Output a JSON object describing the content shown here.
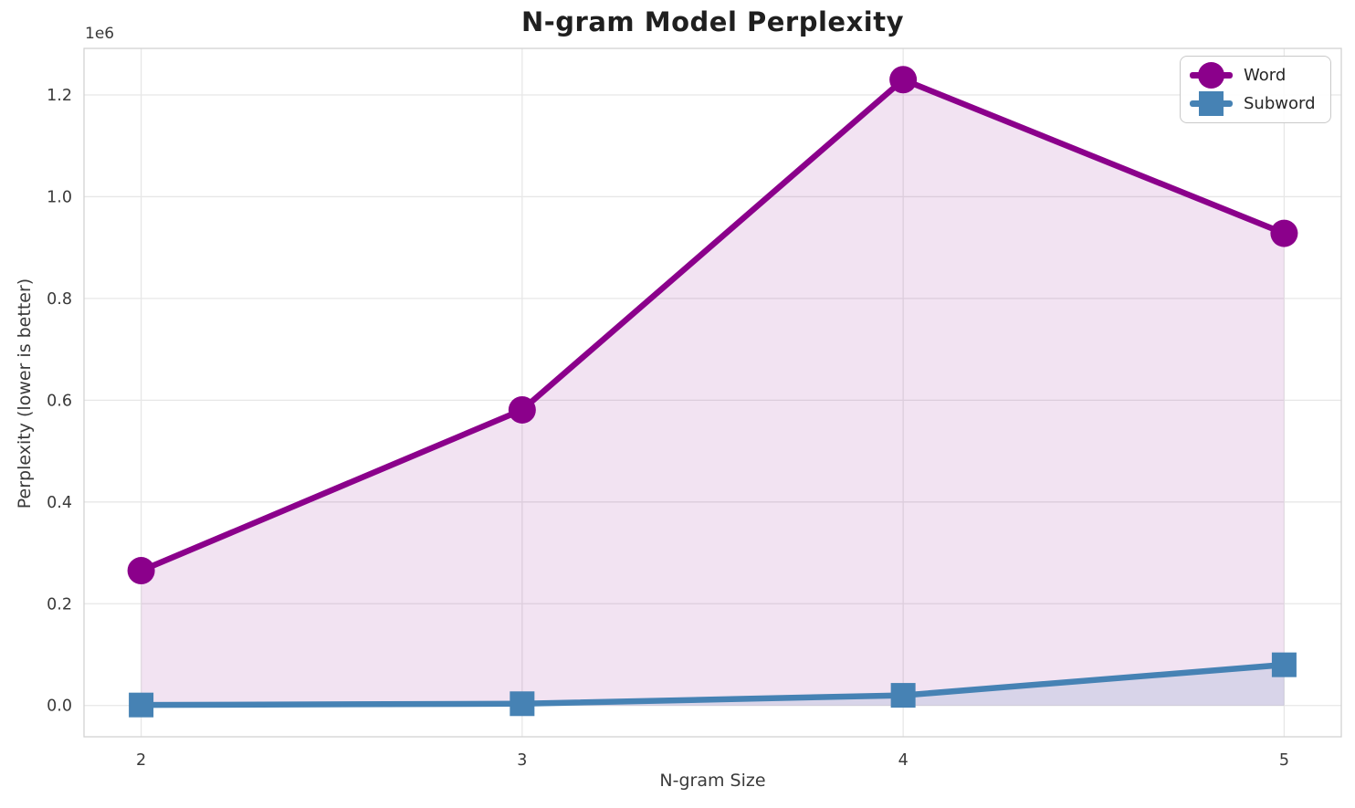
{
  "title": "N-gram Model Perplexity",
  "axes": {
    "xlabel": "N-gram Size",
    "ylabel": "Perplexity (lower is better)",
    "offset_text": "1e6"
  },
  "chart_data": {
    "type": "line",
    "title": "N-gram Model Perplexity",
    "xlabel": "N-gram Size",
    "ylabel": "Perplexity (lower is better)",
    "x": [
      2,
      3,
      4,
      5
    ],
    "xtick_labels": [
      "2",
      "3",
      "4",
      "5"
    ],
    "yticks": [
      0,
      200000,
      400000,
      600000,
      800000,
      1000000,
      1200000
    ],
    "ytick_labels": [
      "0.0",
      "0.2",
      "0.4",
      "0.6",
      "0.8",
      "1.0",
      "1.2"
    ],
    "y_offset_text": "1e6",
    "xlim": [
      1.85,
      5.15
    ],
    "ylim": [
      -61500,
      1291500
    ],
    "grid": true,
    "legend_position": "upper right",
    "series": [
      {
        "name": "Word",
        "color": "#8B008B",
        "marker": "circle",
        "line_width": 6.5,
        "fill_to_zero": true,
        "fill_alpha": 0.11,
        "values": [
          265000,
          581000,
          1230000,
          928000
        ]
      },
      {
        "name": "Subword",
        "color": "#4682B4",
        "marker": "square",
        "line_width": 6.5,
        "fill_to_zero": true,
        "fill_alpha": 0.15,
        "values": [
          1000,
          3500,
          20000,
          80000
        ]
      }
    ]
  }
}
